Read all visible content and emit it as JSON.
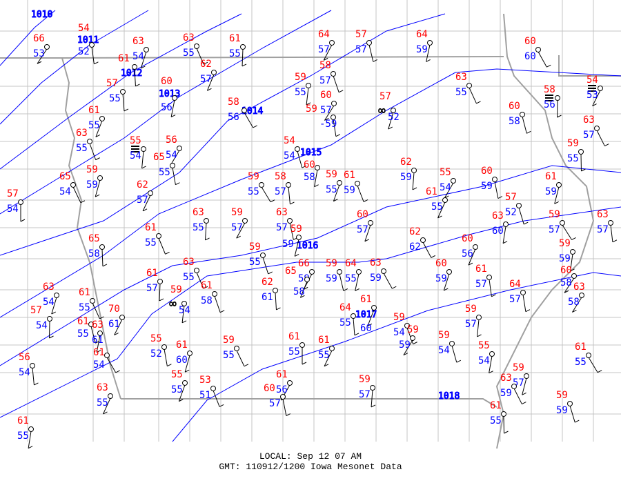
{
  "map": {
    "region": "Iowa",
    "colors": {
      "temperature": "#ff0000",
      "dewpoint": "#0000ff",
      "isobar": "#0000ff",
      "county": "#bbbbbb",
      "border": "#999999"
    },
    "isobars": [
      {
        "label": "1010"
      },
      {
        "label": "1011"
      },
      {
        "label": "1012"
      },
      {
        "label": "1013"
      },
      {
        "label": "1014"
      },
      {
        "label": "1015"
      },
      {
        "label": "1016"
      },
      {
        "label": "1017"
      },
      {
        "label": "1018"
      }
    ],
    "stations": [
      {
        "t": "66",
        "d": "53"
      },
      {
        "t": "54",
        "d": "52"
      },
      {
        "t": "63",
        "d": "54"
      },
      {
        "t": "63",
        "d": "55"
      },
      {
        "t": "61",
        "d": "55"
      },
      {
        "t": "64",
        "d": "57"
      },
      {
        "t": "57",
        "d": "57"
      },
      {
        "t": "64",
        "d": "59"
      },
      {
        "t": "60",
        "d": "60"
      },
      {
        "t": "61",
        "d": ""
      },
      {
        "t": "62",
        "d": "57"
      },
      {
        "t": "58",
        "d": "57"
      },
      {
        "t": "59",
        "d": "55"
      },
      {
        "t": "60",
        "d": "57"
      },
      {
        "t": "59",
        "d": "-59"
      },
      {
        "t": "57",
        "d": "52",
        "wx": "haze"
      },
      {
        "t": "63",
        "d": "55"
      },
      {
        "t": "58",
        "d": "56",
        "wx": "fog"
      },
      {
        "t": "54",
        "d": "53",
        "wx": "fog"
      },
      {
        "t": "60",
        "d": "58"
      },
      {
        "t": "60",
        "d": "56"
      },
      {
        "t": "58",
        "d": "56"
      },
      {
        "t": "57",
        "d": "55"
      },
      {
        "t": "61",
        "d": "55"
      },
      {
        "t": "63",
        "d": "55"
      },
      {
        "t": "55",
        "d": "54",
        "wx": "fog"
      },
      {
        "t": "56",
        "d": "54"
      },
      {
        "t": "65",
        "d": "55"
      },
      {
        "t": "59",
        "d": "59"
      },
      {
        "t": "65",
        "d": "54"
      },
      {
        "t": "57",
        "d": "54"
      },
      {
        "t": "62",
        "d": "57"
      },
      {
        "t": "54",
        "d": "54"
      },
      {
        "t": "60",
        "d": "58"
      },
      {
        "t": "59",
        "d": "55"
      },
      {
        "t": "58",
        "d": "57"
      },
      {
        "t": "59",
        "d": "55"
      },
      {
        "t": "61",
        "d": "59"
      },
      {
        "t": "62",
        "d": "59"
      },
      {
        "t": "55",
        "d": "54"
      },
      {
        "t": "60",
        "d": "59"
      },
      {
        "t": "61",
        "d": "59"
      },
      {
        "t": "63",
        "d": "57"
      },
      {
        "t": "59",
        "d": "55"
      },
      {
        "t": "61",
        "d": "55"
      },
      {
        "t": "57",
        "d": "52"
      },
      {
        "t": "63",
        "d": "60"
      },
      {
        "t": "59",
        "d": "57"
      },
      {
        "t": "63",
        "d": "57"
      },
      {
        "t": "60",
        "d": "57"
      },
      {
        "t": "61",
        "d": "55"
      },
      {
        "t": "63",
        "d": "55"
      },
      {
        "t": "59",
        "d": "57"
      },
      {
        "t": "63",
        "d": "57"
      },
      {
        "t": "59",
        "d": "59"
      },
      {
        "t": "62",
        "d": "62"
      },
      {
        "t": "65",
        "d": "58"
      },
      {
        "t": "60",
        "d": "56"
      },
      {
        "t": "59",
        "d": "55"
      },
      {
        "t": "59",
        "d": "59"
      },
      {
        "t": "60",
        "d": "58"
      },
      {
        "t": "61",
        "d": "57"
      },
      {
        "t": "60",
        "d": "59"
      },
      {
        "t": "63",
        "d": "55"
      },
      {
        "t": "61",
        "d": "57"
      },
      {
        "t": "66",
        "d": "59"
      },
      {
        "t": "59",
        "d": "59"
      },
      {
        "t": "64",
        "d": "55"
      },
      {
        "t": "63",
        "d": "59"
      },
      {
        "t": "62",
        "d": "61"
      },
      {
        "t": "65",
        "d": "58"
      },
      {
        "t": "61",
        "d": "58"
      },
      {
        "t": "59",
        "d": "54",
        "wx": "haze"
      },
      {
        "t": "63",
        "d": "58"
      },
      {
        "t": "64",
        "d": "57"
      },
      {
        "t": "63",
        "d": "54"
      },
      {
        "t": "61",
        "d": "55"
      },
      {
        "t": "57",
        "d": "54"
      },
      {
        "t": "70",
        "d": "61"
      },
      {
        "t": "61",
        "d": "55"
      },
      {
        "t": "63",
        "d": "61"
      },
      {
        "t": "61",
        "d": "54"
      },
      {
        "t": "64",
        "d": "55"
      },
      {
        "t": "61",
        "d": "60"
      },
      {
        "t": "59",
        "d": "54"
      },
      {
        "t": "59",
        "d": "57"
      },
      {
        "t": "59",
        "d": "59"
      },
      {
        "t": "55",
        "d": "52"
      },
      {
        "t": "61",
        "d": "60"
      },
      {
        "t": "59",
        "d": "55"
      },
      {
        "t": "61",
        "d": "55"
      },
      {
        "t": "61",
        "d": "55"
      },
      {
        "t": "59",
        "d": "54"
      },
      {
        "t": "55",
        "d": "54"
      },
      {
        "t": "61",
        "d": "55"
      },
      {
        "t": "56",
        "d": "54"
      },
      {
        "t": "55",
        "d": "55"
      },
      {
        "t": "53",
        "d": "51"
      },
      {
        "t": "59",
        "d": "57"
      },
      {
        "t": "61",
        "d": "56"
      },
      {
        "t": "60",
        "d": "57"
      },
      {
        "t": "59",
        "d": "57"
      },
      {
        "t": "63",
        "d": "59"
      },
      {
        "t": "61",
        "d": "55"
      },
      {
        "t": "63",
        "d": "55"
      },
      {
        "t": "59",
        "d": "59"
      },
      {
        "t": "61",
        "d": "55"
      }
    ]
  },
  "footer": {
    "local": "LOCAL: Sep 12 07 AM",
    "gmt": "GMT: 110912/1200 Iowa Mesonet Data"
  }
}
